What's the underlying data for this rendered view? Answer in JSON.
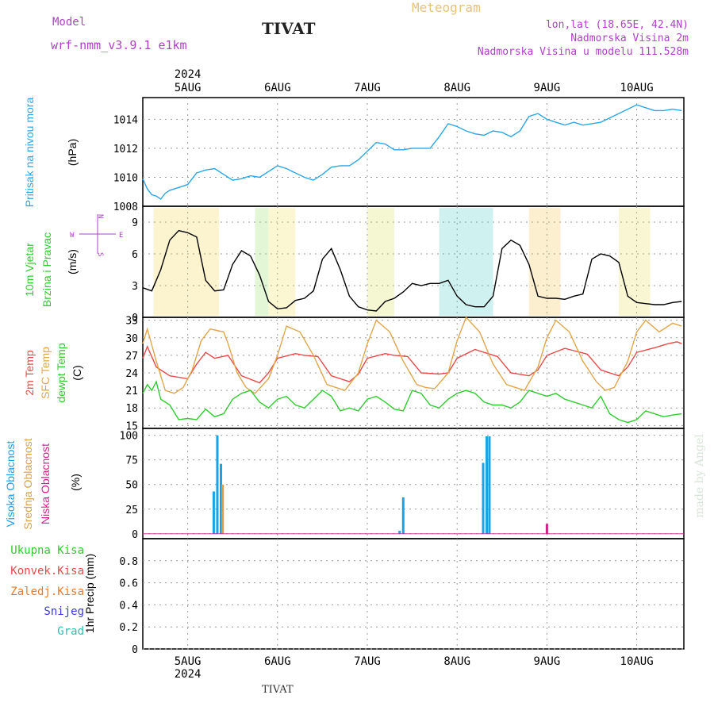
{
  "header": {
    "model_label": "Model",
    "model_name": "wrf-nmm_v3.9.1 e1km",
    "title": "TIVAT",
    "chart_title": "Meteogram",
    "lonlat": "lon,lat (18.65E, 42.4N)",
    "elevation": "Nadmorska Visina 2m",
    "model_elevation": "Nadmorska Visina u modelu 111.528m",
    "credit": "made by Angel",
    "footer_station": "TIVAT"
  },
  "colors": {
    "pressure": "#2aa7e6",
    "temp2m": "#e84a4a",
    "sfc_temp": "#e0a64a",
    "dewpt": "#2ecc2e",
    "high_cloud": "#1aa1e6",
    "mid_cloud": "#d9a24a",
    "low_cloud": "#d21f8c",
    "header_purple": "#b040c8"
  },
  "chart_data": [
    {
      "type": "line",
      "panel": "pressure",
      "ylabel": [
        "Pritisak na nivou mora",
        "(hPa)"
      ],
      "ylim": [
        1008,
        1015.5
      ],
      "yticks": [
        1008,
        1010,
        1012,
        1014
      ],
      "grid": true,
      "x_day_offset_labels": [
        "5AUG",
        "6AUG",
        "7AUG",
        "8AUG",
        "9AUG",
        "10AUG"
      ],
      "year": "2024",
      "series": [
        {
          "color": "pressure",
          "x": [
            0,
            0.05,
            0.1,
            0.15,
            0.2,
            0.25,
            0.3,
            0.4,
            0.5,
            0.6,
            0.7,
            0.8,
            0.9,
            1.0,
            1.1,
            1.2,
            1.3,
            1.4,
            1.5,
            1.6,
            1.7,
            1.8,
            1.9,
            2.0,
            2.1,
            2.2,
            2.3,
            2.4,
            2.5,
            2.6,
            2.7,
            2.8,
            2.9,
            3.0,
            3.1,
            3.2,
            3.3,
            3.4,
            3.5,
            3.6,
            3.7,
            3.8,
            3.9,
            4.0,
            4.1,
            4.2,
            4.3,
            4.4,
            4.5,
            4.6,
            4.7,
            4.8,
            4.9,
            5.0,
            5.1,
            5.2,
            5.3,
            5.4,
            5.5,
            5.6,
            5.7,
            5.8,
            5.9,
            6.0
          ],
          "values": [
            1009.9,
            1009.2,
            1008.8,
            1008.7,
            1008.5,
            1008.9,
            1009.1,
            1009.3,
            1009.5,
            1010.3,
            1010.5,
            1010.6,
            1010.2,
            1009.8,
            1009.9,
            1010.1,
            1010.0,
            1010.4,
            1010.8,
            1010.6,
            1010.3,
            1010.0,
            1009.8,
            1010.2,
            1010.7,
            1010.8,
            1010.8,
            1011.2,
            1011.8,
            1012.4,
            1012.3,
            1011.9,
            1011.9,
            1012.0,
            1012.0,
            1012.0,
            1012.8,
            1013.7,
            1013.5,
            1013.2,
            1013.0,
            1012.9,
            1013.2,
            1013.1,
            1012.8,
            1013.2,
            1014.2,
            1014.4,
            1014.0,
            1013.8,
            1013.6,
            1013.8,
            1013.6,
            1013.7,
            1013.8,
            1014.1,
            1014.4,
            1014.7,
            1015.0,
            1014.8,
            1014.6,
            1014.6,
            1014.7,
            1014.6
          ]
        }
      ]
    },
    {
      "type": "line",
      "panel": "wind",
      "ylabel": [
        "10m Vjetar",
        "Brzina i Pravac",
        "(m/s)"
      ],
      "ylim": [
        0,
        10.5
      ],
      "yticks": [
        0,
        3,
        6,
        9
      ],
      "grid": true,
      "compass": {
        "w": "W",
        "e": "E",
        "n": "N",
        "s": "S"
      },
      "series": [
        {
          "color": "#000000",
          "x": [
            0,
            0.1,
            0.2,
            0.3,
            0.4,
            0.5,
            0.6,
            0.7,
            0.8,
            0.9,
            1.0,
            1.1,
            1.2,
            1.3,
            1.4,
            1.5,
            1.6,
            1.7,
            1.8,
            1.9,
            2.0,
            2.1,
            2.2,
            2.3,
            2.4,
            2.5,
            2.6,
            2.7,
            2.8,
            2.9,
            3.0,
            3.1,
            3.2,
            3.3,
            3.4,
            3.5,
            3.6,
            3.7,
            3.8,
            3.9,
            4.0,
            4.1,
            4.2,
            4.3,
            4.4,
            4.5,
            4.6,
            4.7,
            4.8,
            4.9,
            5.0,
            5.1,
            5.2,
            5.3,
            5.4,
            5.5,
            5.6,
            5.7,
            5.8,
            5.9,
            6.0
          ],
          "values": [
            2.8,
            2.5,
            4.5,
            7.3,
            8.2,
            8.0,
            7.6,
            3.5,
            2.5,
            2.6,
            5.0,
            6.3,
            5.8,
            4.0,
            1.5,
            0.8,
            0.9,
            1.6,
            1.8,
            2.5,
            5.5,
            6.5,
            4.5,
            2.0,
            1.0,
            0.7,
            0.6,
            1.5,
            1.8,
            2.4,
            3.2,
            3.0,
            3.2,
            3.2,
            3.5,
            2.0,
            1.2,
            1.0,
            1.0,
            2.0,
            6.5,
            7.3,
            6.8,
            5.0,
            2.0,
            1.8,
            1.8,
            1.7,
            2.0,
            2.2,
            5.5,
            6.0,
            5.8,
            5.2,
            2.0,
            1.4,
            1.3,
            1.2,
            1.2,
            1.4,
            1.5
          ]
        }
      ]
    },
    {
      "type": "line",
      "panel": "temperature",
      "ylabel": [
        "2m Temp",
        "SFC Temp",
        "dewpt Temp",
        "(C)"
      ],
      "ylim": [
        14.5,
        33.5
      ],
      "yticks": [
        15,
        18,
        21,
        24,
        27,
        30,
        33
      ],
      "grid": true,
      "series": [
        {
          "color": "temp2m",
          "x": [
            0,
            0.05,
            0.15,
            0.3,
            0.5,
            0.6,
            0.7,
            0.8,
            0.95,
            1.1,
            1.3,
            1.4,
            1.5,
            1.7,
            1.8,
            1.95,
            2.1,
            2.3,
            2.4,
            2.5,
            2.7,
            2.8,
            2.95,
            3.1,
            3.3,
            3.4,
            3.5,
            3.7,
            3.8,
            3.95,
            4.1,
            4.3,
            4.4,
            4.5,
            4.7,
            4.8,
            4.95,
            5.1,
            5.3,
            5.4,
            5.5,
            5.7,
            5.85,
            5.95,
            6.0
          ],
          "values": [
            26.5,
            28.5,
            25.0,
            23.5,
            23.0,
            25.5,
            27.5,
            26.5,
            27.0,
            23.5,
            22.3,
            24.0,
            26.5,
            27.3,
            27.0,
            26.8,
            23.5,
            22.5,
            23.8,
            26.5,
            27.3,
            27.0,
            26.8,
            24.0,
            23.8,
            24.0,
            26.5,
            28.0,
            27.5,
            26.8,
            24.0,
            23.5,
            24.5,
            27.0,
            28.2,
            27.8,
            27.2,
            24.5,
            23.5,
            25.0,
            27.5,
            28.3,
            29.0,
            29.3,
            29.0
          ]
        },
        {
          "color": "sfc_temp",
          "x": [
            0,
            0.05,
            0.15,
            0.25,
            0.35,
            0.45,
            0.55,
            0.65,
            0.75,
            0.9,
            0.95,
            1.05,
            1.15,
            1.25,
            1.4,
            1.5,
            1.6,
            1.75,
            1.9,
            2.05,
            2.15,
            2.25,
            2.4,
            2.5,
            2.6,
            2.75,
            2.9,
            3.05,
            3.15,
            3.25,
            3.4,
            3.5,
            3.6,
            3.75,
            3.9,
            4.05,
            4.15,
            4.25,
            4.4,
            4.5,
            4.6,
            4.75,
            4.9,
            5.05,
            5.15,
            5.25,
            5.4,
            5.5,
            5.6,
            5.75,
            5.9,
            6.0
          ],
          "values": [
            29.0,
            31.5,
            26.0,
            21.0,
            20.5,
            21.5,
            24.5,
            29.5,
            31.5,
            31.0,
            29.0,
            24.0,
            21.5,
            20.5,
            23.0,
            27.0,
            32.0,
            31.0,
            27.0,
            22.0,
            21.5,
            21.0,
            24.0,
            29.0,
            33.0,
            31.0,
            26.0,
            22.0,
            21.5,
            21.3,
            24.0,
            29.5,
            33.5,
            31.0,
            25.5,
            22.0,
            21.5,
            21.0,
            25.0,
            30.0,
            33.0,
            31.0,
            26.0,
            22.5,
            21.0,
            21.5,
            26.0,
            31.0,
            33.0,
            31.0,
            32.5,
            32.0
          ]
        },
        {
          "color": "dewpt",
          "x": [
            0,
            0.05,
            0.1,
            0.15,
            0.2,
            0.3,
            0.4,
            0.5,
            0.6,
            0.7,
            0.8,
            0.9,
            1.0,
            1.1,
            1.2,
            1.3,
            1.4,
            1.5,
            1.6,
            1.7,
            1.8,
            1.9,
            2.0,
            2.1,
            2.2,
            2.3,
            2.4,
            2.5,
            2.6,
            2.7,
            2.8,
            2.9,
            3.0,
            3.1,
            3.2,
            3.3,
            3.4,
            3.5,
            3.6,
            3.7,
            3.8,
            3.9,
            4.0,
            4.1,
            4.2,
            4.3,
            4.4,
            4.5,
            4.6,
            4.7,
            4.8,
            4.9,
            5.0,
            5.1,
            5.2,
            5.3,
            5.4,
            5.5,
            5.6,
            5.7,
            5.8,
            5.9,
            6.0
          ],
          "values": [
            20.5,
            22.0,
            21.0,
            22.5,
            19.5,
            18.5,
            16.0,
            16.2,
            16.0,
            17.8,
            16.5,
            17.0,
            19.5,
            20.5,
            21.0,
            19.0,
            18.0,
            19.5,
            20.0,
            18.5,
            18.0,
            19.5,
            21.0,
            20.0,
            17.5,
            18.0,
            17.5,
            19.5,
            20.0,
            19.0,
            17.8,
            17.5,
            21.0,
            20.5,
            18.5,
            18.0,
            19.5,
            20.5,
            21.0,
            20.5,
            19.0,
            18.5,
            18.5,
            18.0,
            19.0,
            21.0,
            20.5,
            20.0,
            20.5,
            19.5,
            19.0,
            18.5,
            18.0,
            20.0,
            17.0,
            16.0,
            15.5,
            16.0,
            17.5,
            17.0,
            16.5,
            16.8,
            17.0
          ]
        }
      ]
    },
    {
      "type": "bar",
      "panel": "cloud",
      "ylabel": [
        "Visoka Oblacnost",
        "Srednja Oblacnost",
        "Niska Oblacnost",
        "(%)"
      ],
      "ylim": [
        -5,
        107
      ],
      "yticks": [
        0,
        25,
        50,
        75,
        100
      ],
      "grid": true,
      "series": [
        {
          "color": "high_cloud",
          "x": [
            0.79,
            0.83,
            0.87,
            2.86,
            2.9,
            3.79,
            3.83,
            3.86
          ],
          "values": [
            43,
            100,
            71,
            3,
            37,
            72,
            99,
            99
          ]
        },
        {
          "color": "mid_cloud",
          "x": [
            0.89
          ],
          "values": [
            50
          ]
        },
        {
          "color": "low_cloud",
          "x": [
            4.5
          ],
          "values": [
            10
          ]
        }
      ]
    },
    {
      "type": "bar",
      "panel": "precip",
      "ylabel": [
        "1hr Precip (mm)"
      ],
      "legend": [
        "Ukupna Kisa",
        "Konvek.Kisa",
        "Zaledj.Kisa",
        "Snijeg",
        "Grad"
      ],
      "legend_colors": [
        "#2ecc2e",
        "#e84a4a",
        "#ee7a2a",
        "#3a3ae0",
        "#2ac2b0"
      ],
      "ylim": [
        0,
        1.0
      ],
      "yticks": [
        0,
        0.2,
        0.4,
        0.6,
        0.8
      ],
      "grid": true,
      "series": []
    }
  ]
}
